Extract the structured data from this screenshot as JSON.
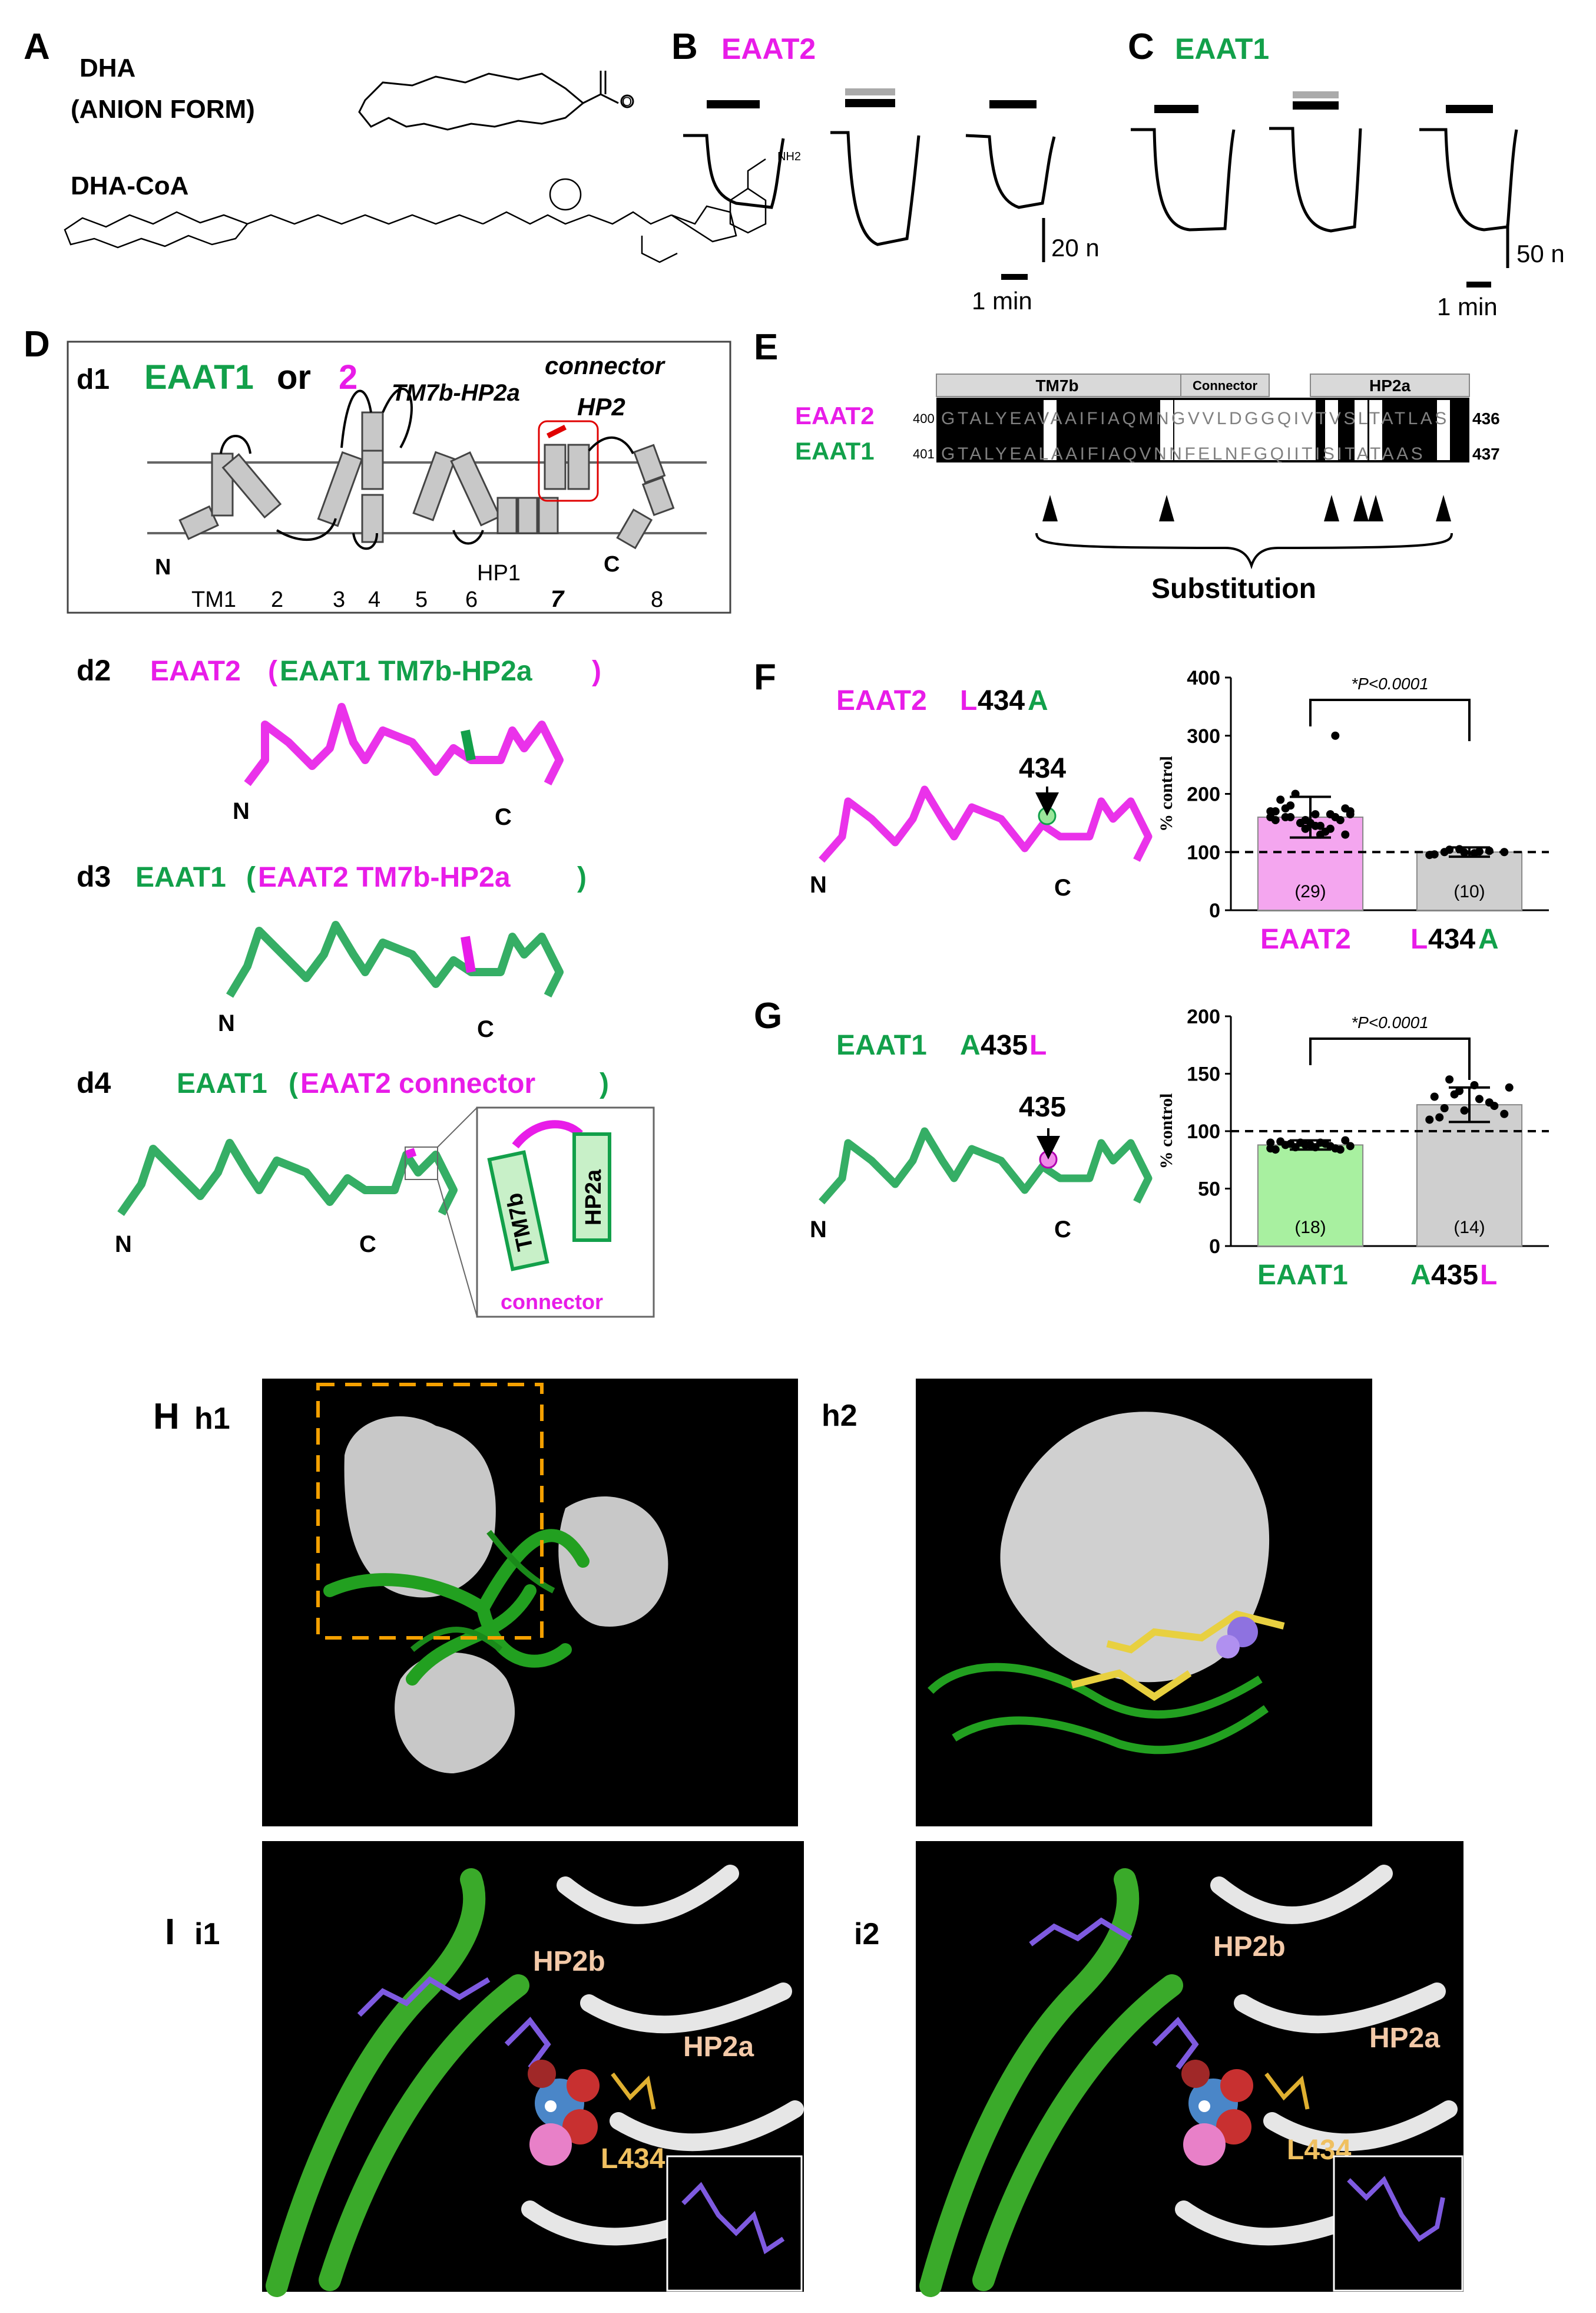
{
  "panels": {
    "A": {
      "letter": "A",
      "dha_line1": "DHA",
      "dha_line2": "(ANION FORM)",
      "dha_coa": "DHA-CoA"
    },
    "B": {
      "letter": "B",
      "title": "EAAT2",
      "scale_y": "20 n",
      "scale_x": "1 min"
    },
    "C": {
      "letter": "C",
      "title": "EAAT1",
      "scale_y": "50 n",
      "scale_x": "1 min"
    },
    "D": {
      "letter": "D",
      "d1": {
        "tag": "d1",
        "title_a": "EAAT1",
        "title_or": " or ",
        "title_b": "2",
        "label_tm7b": "TM7b-HP2a",
        "label_connector": "connector",
        "label_hp2": "HP2",
        "label_hp1": "HP1",
        "label_n": "N",
        "label_c": "C",
        "tm_labels": [
          "TM1",
          "2",
          "3",
          "4",
          "5",
          "6",
          "7",
          "8"
        ]
      },
      "d2": {
        "tag": "d2",
        "host": "EAAT2",
        "insert": "EAAT1 TM7b-HP2a"
      },
      "d3": {
        "tag": "d3",
        "host": "EAAT1",
        "insert": "EAAT2 TM7b-HP2a"
      },
      "d4": {
        "tag": "d4",
        "host": "EAAT1",
        "insert": "EAAT2 connector",
        "inset_left": "TM7b",
        "inset_right": "HP2a",
        "inset_caption": "connector"
      },
      "N": "N",
      "C": "C"
    },
    "E": {
      "letter": "E",
      "headers": [
        "TM7b",
        "Connector",
        "HP2a"
      ],
      "rows": [
        {
          "name": "EAAT2",
          "start": "400",
          "seq": "GTALYEAVAAIFIAQMNGVVLDGGQIVTVSLTATLAS",
          "end": "436"
        },
        {
          "name": "EAAT1",
          "start": "401",
          "seq": "GTALYEALAAIFIAQVNNFELNFGQIITISITATAAS",
          "end": "437"
        }
      ],
      "footer": "Substitution"
    },
    "F": {
      "letter": "F",
      "title_a": "EAAT2 ",
      "title_b": "L",
      "title_c": "434",
      "title_d": "A",
      "site": "434",
      "N": "N",
      "C": "C",
      "stat": "*P<0.0001"
    },
    "G": {
      "letter": "G",
      "title_a": "EAAT1 ",
      "title_b": "A",
      "title_c": "435",
      "title_d": "L",
      "site": "435",
      "N": "N",
      "C": "C",
      "stat": "*P<0.0001"
    },
    "H": {
      "letter": "H",
      "sub1": "h1",
      "sub2": "h2"
    },
    "I": {
      "letter": "I",
      "sub1": "i1",
      "sub2": "i2",
      "labels": {
        "hp2b": "HP2b",
        "hp2a": "HP2a",
        "l434": "L434"
      }
    }
  },
  "chart_data": [
    {
      "type": "bar",
      "panel": "F",
      "categories": [
        "EAAT2",
        "L434A"
      ],
      "category_label_parts": [
        [
          "EAAT2"
        ],
        [
          "L",
          "434",
          "A"
        ]
      ],
      "values": [
        160,
        100
      ],
      "sem": [
        35,
        8
      ],
      "n_labels": [
        "(29)",
        "(10)"
      ],
      "bar_colors": [
        "#f4a6ef",
        "#cfcfcf"
      ],
      "ylabel": "% control",
      "ylim": [
        0,
        400
      ],
      "yticks": [
        "0",
        "100",
        "200",
        "300",
        "400"
      ],
      "reference_line": 100,
      "significance": "*P<0.0001",
      "points": [
        [
          160,
          175,
          150,
          165,
          140,
          130,
          170,
          180,
          155,
          145,
          160,
          165,
          190,
          200,
          150,
          135,
          155,
          170,
          160,
          150,
          145,
          165,
          175,
          155,
          160,
          140,
          130,
          300,
          170
        ],
        [
          95,
          100,
          105,
          98,
          102,
          100,
          96,
          104,
          99,
          101
        ]
      ]
    },
    {
      "type": "bar",
      "panel": "G",
      "categories": [
        "EAAT1",
        "A435L"
      ],
      "category_label_parts": [
        [
          "EAAT1"
        ],
        [
          "A",
          "435",
          "L"
        ]
      ],
      "values": [
        88,
        123
      ],
      "sem": [
        4,
        15
      ],
      "n_labels": [
        "(18)",
        "(14)"
      ],
      "bar_colors": [
        "#a8f0a0",
        "#cfcfcf"
      ],
      "ylabel": "% control",
      "ylim": [
        0,
        200
      ],
      "yticks": [
        "0",
        "50",
        "100",
        "150",
        "200"
      ],
      "reference_line": 100,
      "significance": "*P<0.0001",
      "points": [
        [
          85,
          88,
          90,
          86,
          87,
          92,
          84,
          89,
          88,
          90,
          85,
          87,
          91,
          86,
          88,
          89,
          84,
          90
        ],
        [
          110,
          120,
          135,
          140,
          125,
          115,
          130,
          145,
          118,
          128,
          122,
          138,
          112,
          132
        ]
      ]
    }
  ]
}
